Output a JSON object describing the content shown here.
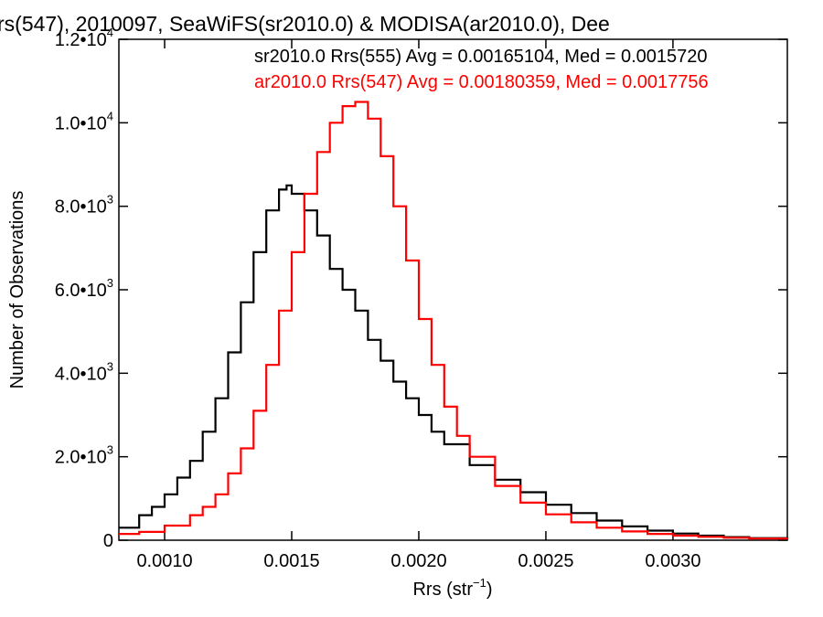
{
  "chart_data": {
    "type": "line",
    "title": "rs(547), 2010097, SeaWiFS(sr2010.0) & MODISA(ar2010.0), Dee",
    "xlabel": "Rrs (str",
    "xlabel_sup": "−1",
    "xlabel_end": ")",
    "ylabel": "Number of Observations",
    "xlim": [
      0.00082,
      0.00345
    ],
    "ylim": [
      0,
      12000
    ],
    "x_ticks": [
      {
        "value": 0.001,
        "label": "0.0010"
      },
      {
        "value": 0.0015,
        "label": "0.0015"
      },
      {
        "value": 0.002,
        "label": "0.0020"
      },
      {
        "value": 0.0025,
        "label": "0.0025"
      },
      {
        "value": 0.003,
        "label": "0.0030"
      }
    ],
    "y_ticks": [
      {
        "value": 0,
        "label": "0",
        "exp": ""
      },
      {
        "value": 2000,
        "label": "2.0•10",
        "exp": "3"
      },
      {
        "value": 4000,
        "label": "4.0•10",
        "exp": "3"
      },
      {
        "value": 6000,
        "label": "6.0•10",
        "exp": "3"
      },
      {
        "value": 8000,
        "label": "8.0•10",
        "exp": "3"
      },
      {
        "value": 10000,
        "label": "1.0•10",
        "exp": "4"
      },
      {
        "value": 12000,
        "label": "1.2•10",
        "exp": "4"
      }
    ],
    "legend": [
      "sr2010.0 Rrs(555) Avg = 0.00165104, Med = 0.0015720",
      "ar2010.0 Rrs(547) Avg = 0.00180359, Med = 0.0017756"
    ],
    "series": [
      {
        "color": "#000000",
        "x": [
          0.00082,
          0.0009,
          0.00095,
          0.001,
          0.00105,
          0.0011,
          0.00115,
          0.0012,
          0.00125,
          0.0013,
          0.00135,
          0.0014,
          0.00145,
          0.00148,
          0.0015,
          0.00155,
          0.0016,
          0.00165,
          0.0017,
          0.00175,
          0.0018,
          0.00185,
          0.0019,
          0.00195,
          0.002,
          0.00205,
          0.0021,
          0.0022,
          0.0023,
          0.0024,
          0.0025,
          0.0026,
          0.0027,
          0.0028,
          0.0029,
          0.003,
          0.0031,
          0.0032,
          0.0033,
          0.00345
        ],
        "values": [
          300,
          600,
          800,
          1100,
          1500,
          1900,
          2600,
          3400,
          4500,
          5700,
          6900,
          7900,
          8400,
          8500,
          8300,
          7900,
          7300,
          6500,
          6000,
          5500,
          4800,
          4300,
          3800,
          3400,
          3000,
          2600,
          2300,
          1800,
          1450,
          1150,
          850,
          650,
          470,
          330,
          230,
          160,
          110,
          75,
          50,
          30
        ]
      },
      {
        "color": "#ff0000",
        "x": [
          0.00082,
          0.0009,
          0.001,
          0.0011,
          0.00115,
          0.0012,
          0.00125,
          0.0013,
          0.00135,
          0.0014,
          0.00145,
          0.0015,
          0.00155,
          0.0016,
          0.00165,
          0.0017,
          0.00175,
          0.0018,
          0.00185,
          0.0019,
          0.00195,
          0.002,
          0.00205,
          0.0021,
          0.00215,
          0.0022,
          0.0023,
          0.0024,
          0.0025,
          0.0026,
          0.0027,
          0.0028,
          0.0029,
          0.003,
          0.0031,
          0.0032,
          0.0033,
          0.00345
        ],
        "values": [
          150,
          200,
          350,
          600,
          800,
          1100,
          1600,
          2200,
          3100,
          4200,
          5500,
          6900,
          8300,
          9300,
          10000,
          10400,
          10500,
          10100,
          9200,
          8000,
          6700,
          5300,
          4200,
          3200,
          2500,
          2000,
          1300,
          900,
          620,
          430,
          300,
          210,
          150,
          110,
          80,
          60,
          40,
          25
        ]
      }
    ]
  }
}
